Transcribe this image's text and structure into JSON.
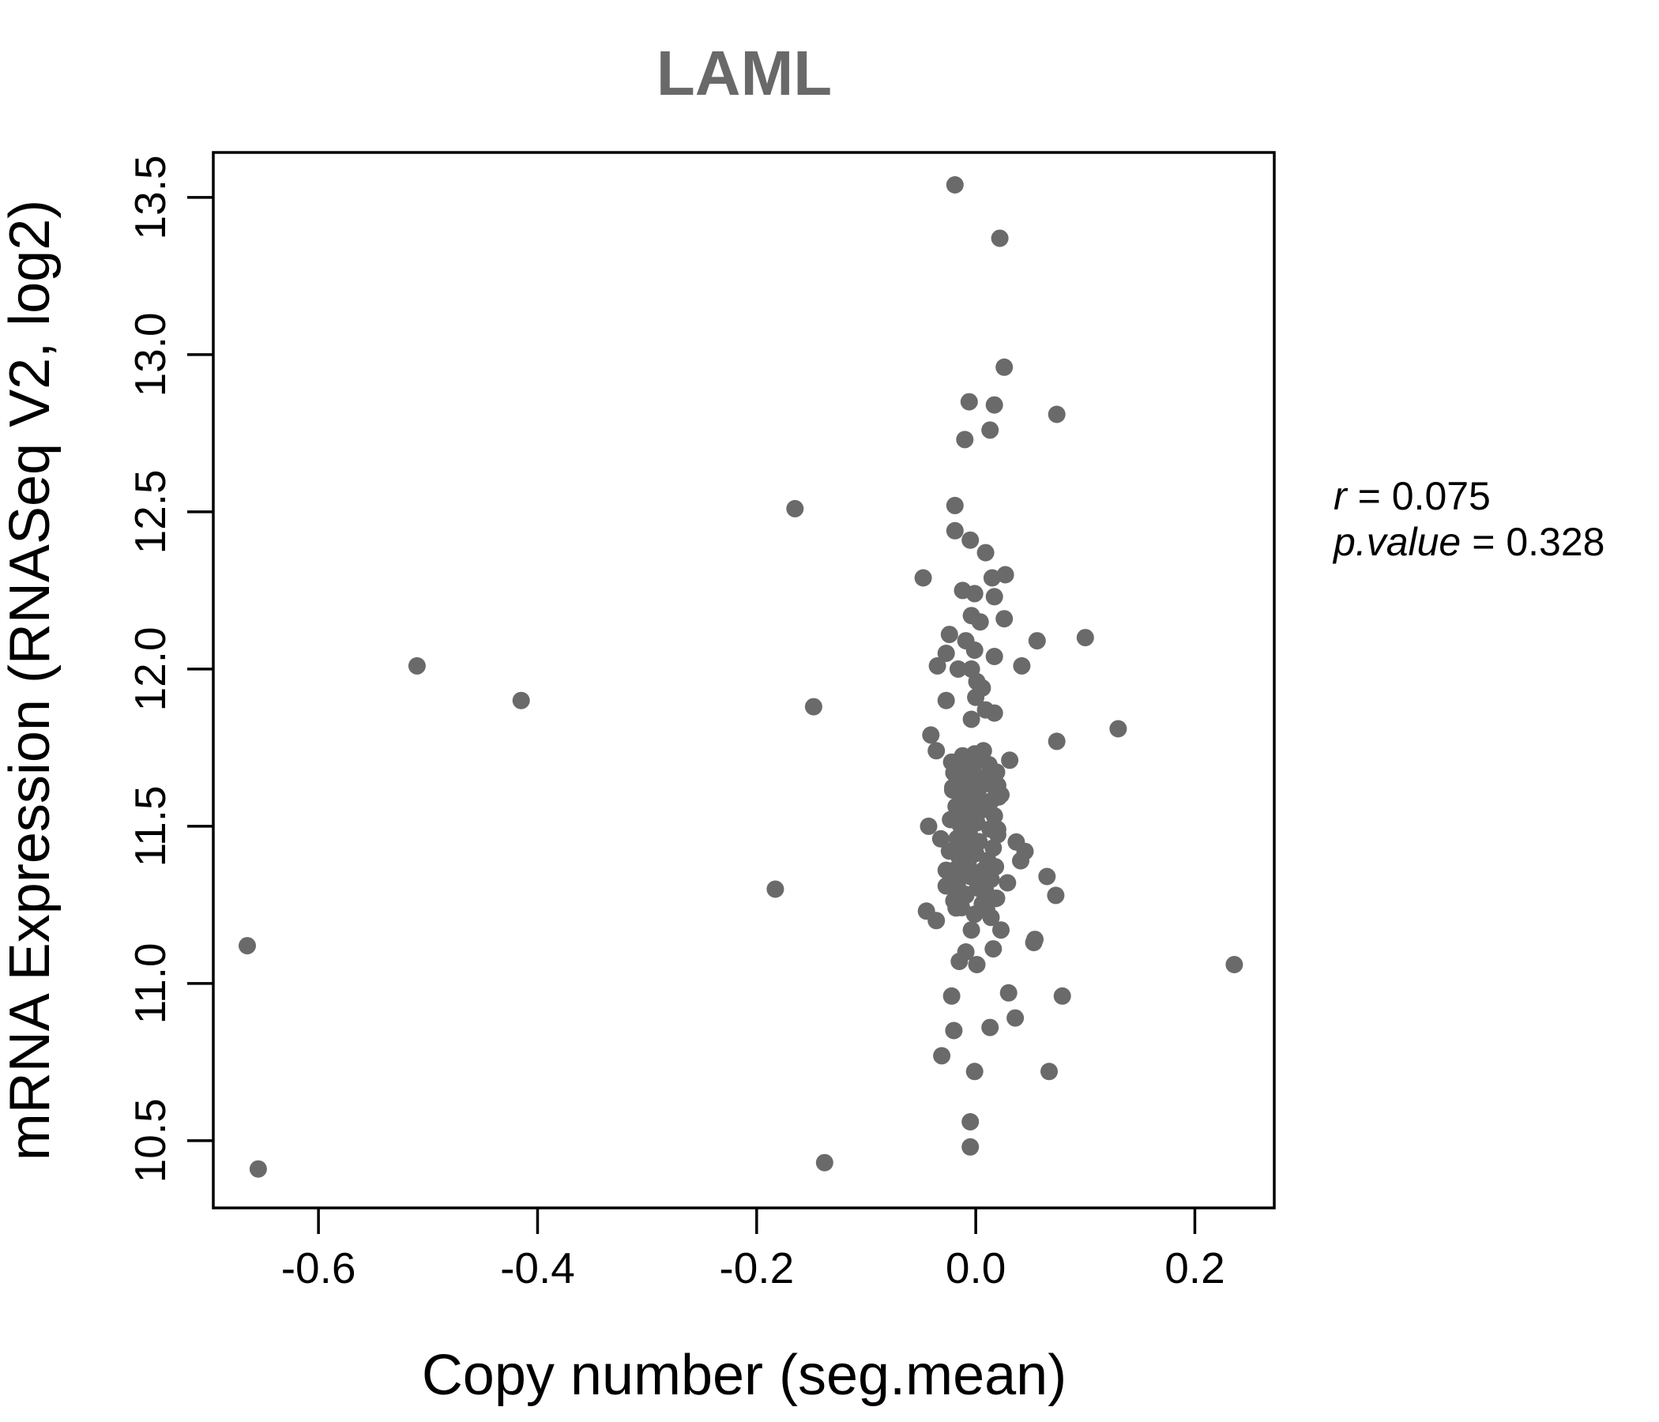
{
  "chart_data": {
    "type": "scatter",
    "title": "LAML",
    "xlabel": "Copy number (seg.mean)",
    "ylabel": "mRNA Expression (RNASeq V2, log2)",
    "xlim": [
      -0.696,
      0.2725
    ],
    "ylim": [
      10.286,
      13.643
    ],
    "grid": false,
    "xticks": {
      "values": [
        -0.6,
        -0.4,
        -0.2,
        0.0,
        0.2
      ],
      "labels": [
        "-0.6",
        "-0.4",
        "-0.2",
        "0.0",
        "0.2"
      ]
    },
    "yticks": {
      "values": [
        10.5,
        11.0,
        11.5,
        12.0,
        12.5,
        13.0,
        13.5
      ],
      "labels": [
        "10.5",
        "11.0",
        "11.5",
        "12.0",
        "12.5",
        "13.0",
        "13.5"
      ]
    },
    "annotation": {
      "r_label": "r",
      "r_value": "= 0.075",
      "p_label": "p.value",
      "p_value": "= 0.328"
    },
    "point_color": "#6a6a6a",
    "point_radius": 11,
    "title_color": "#696969",
    "axis_color": "#000000",
    "points": [
      [
        -0.665,
        11.12
      ],
      [
        -0.655,
        10.41
      ],
      [
        -0.51,
        12.01
      ],
      [
        -0.415,
        11.9
      ],
      [
        -0.183,
        11.3
      ],
      [
        -0.165,
        12.51
      ],
      [
        -0.148,
        11.88
      ],
      [
        -0.138,
        10.43
      ],
      [
        -0.019,
        13.54
      ],
      [
        0.022,
        13.37
      ],
      [
        0.026,
        12.96
      ],
      [
        -0.006,
        12.85
      ],
      [
        0.017,
        12.84
      ],
      [
        0.074,
        12.81
      ],
      [
        0.013,
        12.76
      ],
      [
        -0.01,
        12.73
      ],
      [
        -0.019,
        12.52
      ],
      [
        -0.019,
        12.44
      ],
      [
        -0.005,
        12.41
      ],
      [
        0.009,
        12.37
      ],
      [
        -0.048,
        12.29
      ],
      [
        0.015,
        12.29
      ],
      [
        0.027,
        12.3
      ],
      [
        -0.012,
        12.25
      ],
      [
        -0.001,
        12.24
      ],
      [
        0.017,
        12.23
      ],
      [
        -0.004,
        12.17
      ],
      [
        0.004,
        12.15
      ],
      [
        0.026,
        12.16
      ],
      [
        0.056,
        12.09
      ],
      [
        0.1,
        12.1
      ],
      [
        -0.024,
        12.11
      ],
      [
        -0.027,
        12.05
      ],
      [
        -0.009,
        12.09
      ],
      [
        -0.001,
        12.06
      ],
      [
        0.017,
        12.04
      ],
      [
        0.042,
        12.01
      ],
      [
        -0.035,
        12.01
      ],
      [
        -0.016,
        12.0
      ],
      [
        -0.004,
        12.0
      ],
      [
        0.001,
        11.96
      ],
      [
        0.006,
        11.94
      ],
      [
        -0.027,
        11.9
      ],
      [
        0.0,
        11.91
      ],
      [
        0.009,
        11.87
      ],
      [
        0.017,
        11.86
      ],
      [
        -0.004,
        11.84
      ],
      [
        0.13,
        11.81
      ],
      [
        0.074,
        11.77
      ],
      [
        -0.041,
        11.79
      ],
      [
        -0.036,
        11.74
      ],
      [
        0.031,
        11.71
      ],
      [
        -0.016,
        11.69
      ],
      [
        -0.001,
        11.73
      ],
      [
        0.007,
        11.74
      ],
      [
        0.013,
        11.65
      ],
      [
        -0.001,
        11.64
      ],
      [
        -0.013,
        11.62
      ],
      [
        0.02,
        11.63
      ],
      [
        -0.02,
        11.67
      ],
      [
        -0.021,
        11.615
      ],
      [
        -0.009,
        11.57
      ],
      [
        0.014,
        11.58
      ],
      [
        0.023,
        11.6
      ],
      [
        0.001,
        11.61
      ],
      [
        -0.043,
        11.5
      ],
      [
        -0.032,
        11.46
      ],
      [
        -0.009,
        11.53
      ],
      [
        -0.012,
        11.48
      ],
      [
        0.02,
        11.49
      ],
      [
        0.0,
        11.45
      ],
      [
        -0.009,
        11.42
      ],
      [
        0.037,
        11.45
      ],
      [
        0.041,
        11.39
      ],
      [
        0.007,
        11.36
      ],
      [
        -0.005,
        11.34
      ],
      [
        -0.027,
        11.36
      ],
      [
        -0.027,
        11.31
      ],
      [
        0.004,
        11.3
      ],
      [
        -0.009,
        11.28
      ],
      [
        0.029,
        11.32
      ],
      [
        0.018,
        11.27
      ],
      [
        0.045,
        11.42
      ],
      [
        0.065,
        11.34
      ],
      [
        0.073,
        11.28
      ],
      [
        -0.045,
        11.23
      ],
      [
        -0.036,
        11.2
      ],
      [
        -0.018,
        11.24
      ],
      [
        -0.001,
        11.22
      ],
      [
        0.014,
        11.21
      ],
      [
        -0.004,
        11.17
      ],
      [
        0.023,
        11.17
      ],
      [
        0.054,
        11.14
      ],
      [
        -0.009,
        11.1
      ],
      [
        0.016,
        11.11
      ],
      [
        0.053,
        11.13
      ],
      [
        -0.015,
        11.07
      ],
      [
        0.001,
        11.06
      ],
      [
        -0.022,
        10.96
      ],
      [
        0.03,
        10.97
      ],
      [
        0.079,
        10.96
      ],
      [
        0.036,
        10.89
      ],
      [
        0.013,
        10.86
      ],
      [
        -0.02,
        10.85
      ],
      [
        -0.031,
        10.77
      ],
      [
        -0.001,
        10.72
      ],
      [
        0.067,
        10.72
      ],
      [
        -0.005,
        10.56
      ],
      [
        -0.005,
        10.48
      ],
      [
        0.236,
        11.06
      ],
      [
        -0.012,
        11.724
      ],
      [
        0.004,
        11.716
      ],
      [
        -0.022,
        11.704
      ],
      [
        0.012,
        11.696
      ],
      [
        -0.003,
        11.684
      ],
      [
        0.019,
        11.672
      ],
      [
        -0.016,
        11.661
      ],
      [
        0.006,
        11.653
      ],
      [
        -0.008,
        11.642
      ],
      [
        0.015,
        11.631
      ],
      [
        -0.021,
        11.623
      ],
      [
        0.002,
        11.611
      ],
      [
        -0.013,
        11.601
      ],
      [
        0.021,
        11.593
      ],
      [
        -0.005,
        11.581
      ],
      [
        0.01,
        11.571
      ],
      [
        -0.018,
        11.563
      ],
      [
        0.005,
        11.551
      ],
      [
        -0.01,
        11.541
      ],
      [
        0.017,
        11.533
      ],
      [
        -0.023,
        11.521
      ],
      [
        0.001,
        11.511
      ],
      [
        -0.014,
        11.503
      ],
      [
        0.013,
        11.491
      ],
      [
        -0.006,
        11.481
      ],
      [
        0.02,
        11.473
      ],
      [
        -0.017,
        11.461
      ],
      [
        0.003,
        11.451
      ],
      [
        -0.011,
        11.443
      ],
      [
        0.016,
        11.431
      ],
      [
        -0.024,
        11.421
      ],
      [
        0.0,
        11.413
      ],
      [
        -0.015,
        11.401
      ],
      [
        0.011,
        11.391
      ],
      [
        -0.007,
        11.383
      ],
      [
        0.018,
        11.371
      ],
      [
        -0.019,
        11.361
      ],
      [
        0.004,
        11.353
      ],
      [
        -0.012,
        11.341
      ],
      [
        0.014,
        11.331
      ],
      [
        -0.022,
        11.323
      ],
      [
        0.002,
        11.311
      ],
      [
        -0.016,
        11.301
      ],
      [
        0.009,
        11.293
      ],
      [
        -0.009,
        11.283
      ],
      [
        0.019,
        11.271
      ],
      [
        -0.02,
        11.263
      ],
      [
        0.006,
        11.253
      ],
      [
        -0.013,
        11.241
      ],
      [
        0.01,
        11.233
      ]
    ]
  }
}
